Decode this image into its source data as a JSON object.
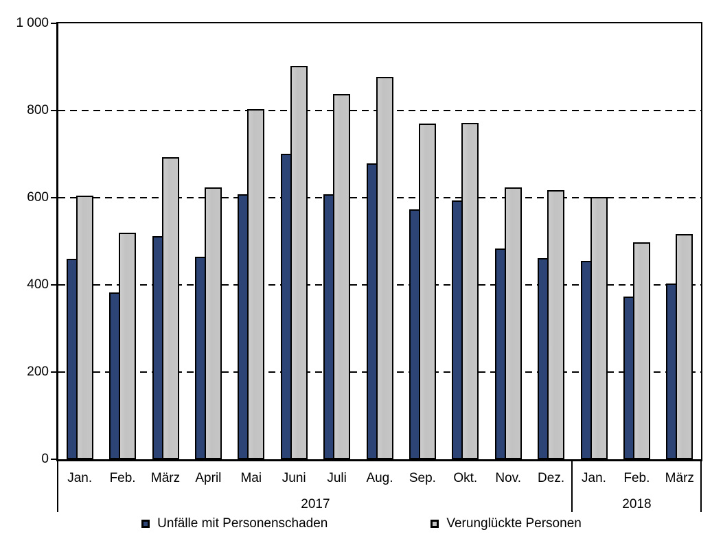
{
  "chart_data": {
    "type": "bar",
    "title": "",
    "categories": [
      "Jan.",
      "Feb.",
      "März",
      "April",
      "Mai",
      "Juni",
      "Juli",
      "Aug.",
      "Sep.",
      "Okt.",
      "Nov.",
      "Dez.",
      "Jan.",
      "Feb.",
      "März"
    ],
    "year_groups": [
      {
        "label": "2017",
        "start": 0,
        "span": 12
      },
      {
        "label": "2018",
        "start": 12,
        "span": 3
      }
    ],
    "series": [
      {
        "name": "Unfälle mit Personenschaden",
        "color": "#2c4576",
        "values": [
          460,
          383,
          512,
          464,
          608,
          700,
          608,
          678,
          574,
          593,
          484,
          462,
          455,
          373,
          403
        ]
      },
      {
        "name": "Verunglückte Personen",
        "color": "#c3c3c3",
        "values": [
          605,
          520,
          693,
          624,
          803,
          903,
          838,
          877,
          770,
          772,
          624,
          617,
          601,
          497,
          517
        ]
      }
    ],
    "ylim": [
      0,
      1000
    ],
    "yticks": [
      0,
      200,
      400,
      600,
      800,
      1000
    ],
    "ytick_labels": [
      "0",
      "200",
      "400",
      "600",
      "800",
      "1 000"
    ],
    "grid": "horizontal dashed at 200,400,600,800",
    "legend_position": "bottom",
    "bar_style": "grouped with overlap, black outlines"
  }
}
